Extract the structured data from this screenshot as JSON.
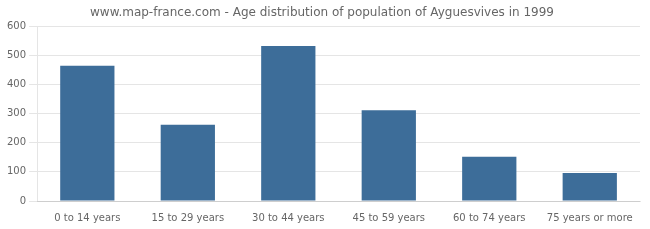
{
  "chart_data": {
    "type": "bar",
    "title": "www.map-france.com - Age distribution of population of Ayguesvives in 1999",
    "categories": [
      "0 to 14 years",
      "15 to 29 years",
      "30 to 44 years",
      "45 to 59 years",
      "60 to 74 years",
      "75 years or more"
    ],
    "values": [
      465,
      262,
      533,
      312,
      152,
      96
    ],
    "color": "#3d6d99",
    "ylim": [
      0,
      600
    ],
    "yticks": [
      0,
      100,
      200,
      300,
      400,
      500,
      600
    ],
    "grid": true
  }
}
